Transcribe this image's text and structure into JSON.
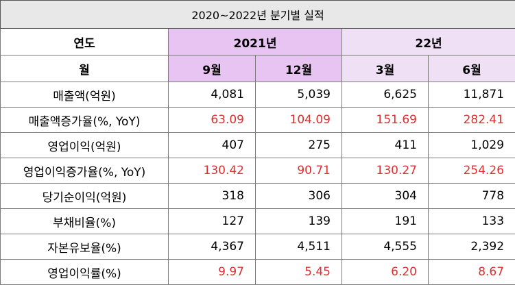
{
  "title": "2020~2022년 분기별 실적",
  "header": {
    "year_label": "연도",
    "month_label": "월",
    "year_2021": "2021년",
    "year_22": "22년",
    "months": [
      "9월",
      "12월",
      "3월",
      "6월"
    ]
  },
  "rows": [
    {
      "label": "매출액(억원)",
      "values": [
        "4,081",
        "5,039",
        "6,625",
        "11,871"
      ],
      "color": "#000000"
    },
    {
      "label": "매출액증가율(%, YoY)",
      "values": [
        "63.09",
        "104.09",
        "151.69",
        "282.41"
      ],
      "color": "#d93030"
    },
    {
      "label": "영업이익(억원)",
      "values": [
        "407",
        "275",
        "411",
        "1,029"
      ],
      "color": "#000000"
    },
    {
      "label": "영업이익증가율(%, YoY)",
      "values": [
        "130.42",
        "90.71",
        "130.27",
        "254.26"
      ],
      "color": "#d93030"
    },
    {
      "label": "당기순이익(억원)",
      "values": [
        "318",
        "306",
        "304",
        "778"
      ],
      "color": "#000000"
    },
    {
      "label": "부채비율(%)",
      "values": [
        "127",
        "139",
        "191",
        "133"
      ],
      "color": "#000000"
    },
    {
      "label": "자본유보율(%)",
      "values": [
        "4,367",
        "4,511",
        "4,555",
        "2,392"
      ],
      "color": "#000000"
    },
    {
      "label": "영업이익률(%)",
      "values": [
        "9.97",
        "5.45",
        "6.20",
        "8.67"
      ],
      "color": "#d93030"
    }
  ]
}
